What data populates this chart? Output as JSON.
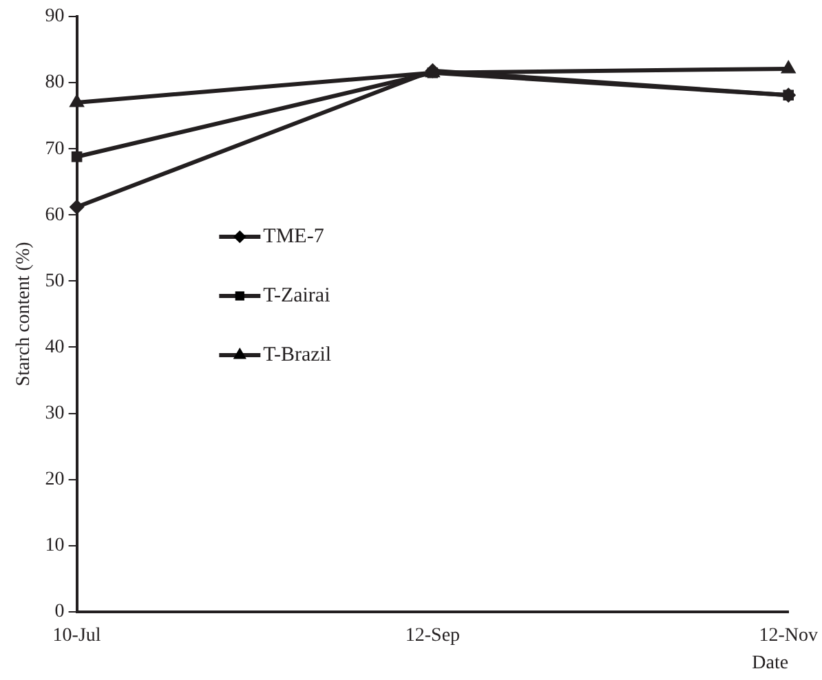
{
  "chart_data": {
    "type": "line",
    "xlabel": "Date",
    "ylabel": "Starch content (%)",
    "categories": [
      "10-Jul",
      "12-Sep",
      "12-Nov"
    ],
    "series": [
      {
        "name": "TME-7",
        "color": "#231f20",
        "marker": "diamond",
        "values": [
          61.2,
          81.8,
          78.1
        ]
      },
      {
        "name": "T-Zairai",
        "color": "#231f20",
        "marker": "square",
        "values": [
          68.8,
          81.5,
          78.1
        ]
      },
      {
        "name": "T-Brazil",
        "color": "#231f20",
        "marker": "triangle",
        "values": [
          77,
          81.5,
          82.1
        ]
      }
    ],
    "ylim": [
      0,
      90
    ],
    "yticks": [
      0,
      10,
      20,
      30,
      40,
      50,
      60,
      70,
      80,
      90
    ],
    "grid": false,
    "legend": "center",
    "line_style": "solid"
  }
}
